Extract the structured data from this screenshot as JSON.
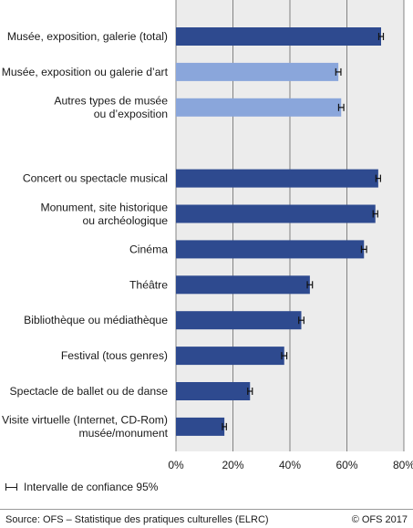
{
  "chart_data": {
    "type": "bar",
    "orientation": "horizontal",
    "categories": [
      [
        "Musée, exposition, galerie (total)"
      ],
      [
        "Musée, exposition ou galerie d’art"
      ],
      [
        "Autres types de musée",
        "ou d’exposition"
      ],
      null,
      [
        "Concert ou spectacle musical"
      ],
      [
        "Monument, site historique",
        "ou archéologique"
      ],
      [
        "Cinéma"
      ],
      [
        "Théâtre"
      ],
      [
        "Bibliothèque ou médiathèque"
      ],
      [
        "Festival (tous genres)"
      ],
      [
        "Spectacle de ballet ou de danse"
      ],
      [
        "Visite virtuelle (Internet, CD-Rom)",
        "musée/monument"
      ]
    ],
    "values": [
      72,
      57,
      58,
      null,
      71,
      70,
      66,
      47,
      44,
      38,
      26,
      17
    ],
    "ci_halfwidth": [
      0.8,
      0.9,
      0.9,
      null,
      0.8,
      0.8,
      0.9,
      0.9,
      0.9,
      0.9,
      0.8,
      0.7
    ],
    "bar_style": [
      "dark",
      "light",
      "light",
      null,
      "dark",
      "dark",
      "dark",
      "dark",
      "dark",
      "dark",
      "dark",
      "dark"
    ],
    "xlim": [
      0,
      80
    ],
    "x_ticks": [
      0,
      20,
      40,
      60,
      80
    ],
    "x_tick_labels": [
      "0%",
      "20%",
      "40%",
      "60%",
      "80%"
    ],
    "grid": true,
    "colors": {
      "dark": "#2e4a8f",
      "light": "#8aa6db",
      "plot_bg": "#ececec",
      "grid": "#555555"
    },
    "legend": "Intervalle de confiance 95%"
  },
  "footer": {
    "source": "Source: OFS – Statistique des pratiques culturelles (ELRC)",
    "copyright": "© OFS 2017"
  }
}
